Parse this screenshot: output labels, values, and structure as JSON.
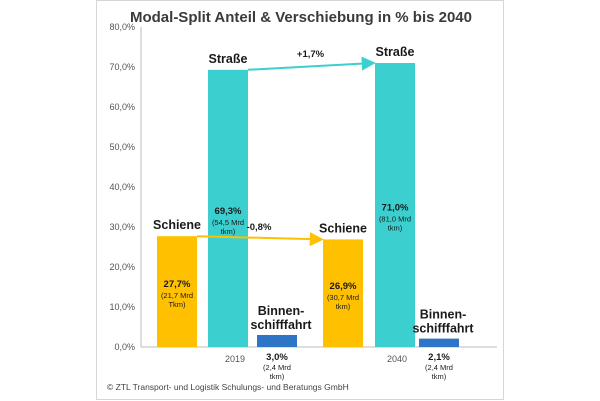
{
  "chart_data": {
    "type": "bar",
    "title": "Modal-Split Anteil & Verschiebung in % bis 2040",
    "categories": [
      "2019",
      "2040"
    ],
    "ylim": [
      0,
      80
    ],
    "yticks": [
      "0,0%",
      "10,0%",
      "20,0%",
      "30,0%",
      "40,0%",
      "50,0%",
      "60,0%",
      "70,0%",
      "80,0%"
    ],
    "grid": false,
    "series": [
      {
        "name": "Schiene",
        "color": "#FFC000",
        "values": [
          27.7,
          26.9
        ],
        "value_labels": [
          "27,7%",
          "26,9%"
        ],
        "detail_labels": [
          [
            "(21,7 Mrd",
            "Tkm)"
          ],
          [
            "(30,7 Mrd",
            "tkm)"
          ]
        ]
      },
      {
        "name": "Straße",
        "color": "#3CCFCF",
        "values": [
          69.3,
          71.0
        ],
        "value_labels": [
          "69,3%",
          "71,0%"
        ],
        "detail_labels": [
          [
            "(54,5 Mrd",
            "tkm)"
          ],
          [
            "(81,0 Mrd",
            "tkm)"
          ]
        ]
      },
      {
        "name": "Binnen-schifffahrt",
        "name_lines": [
          "Binnen-",
          "schifffahrt"
        ],
        "color": "#2E75C8",
        "values": [
          3.0,
          2.1
        ],
        "value_labels": [
          "3,0%",
          "2,1%"
        ],
        "detail_labels": [
          [
            "(2,4 Mrd",
            "tkm)"
          ],
          [
            "(2,4 Mrd",
            "tkm)"
          ]
        ]
      }
    ],
    "annotations": [
      {
        "series": "Straße",
        "text": "+1,7%",
        "color": "#3CCFCF"
      },
      {
        "series": "Schiene",
        "text": "-0,8%",
        "color": "#FFC000"
      }
    ],
    "source": "© ZTL Transport- und Logistik Schulungs- und Beratungs GmbH"
  }
}
